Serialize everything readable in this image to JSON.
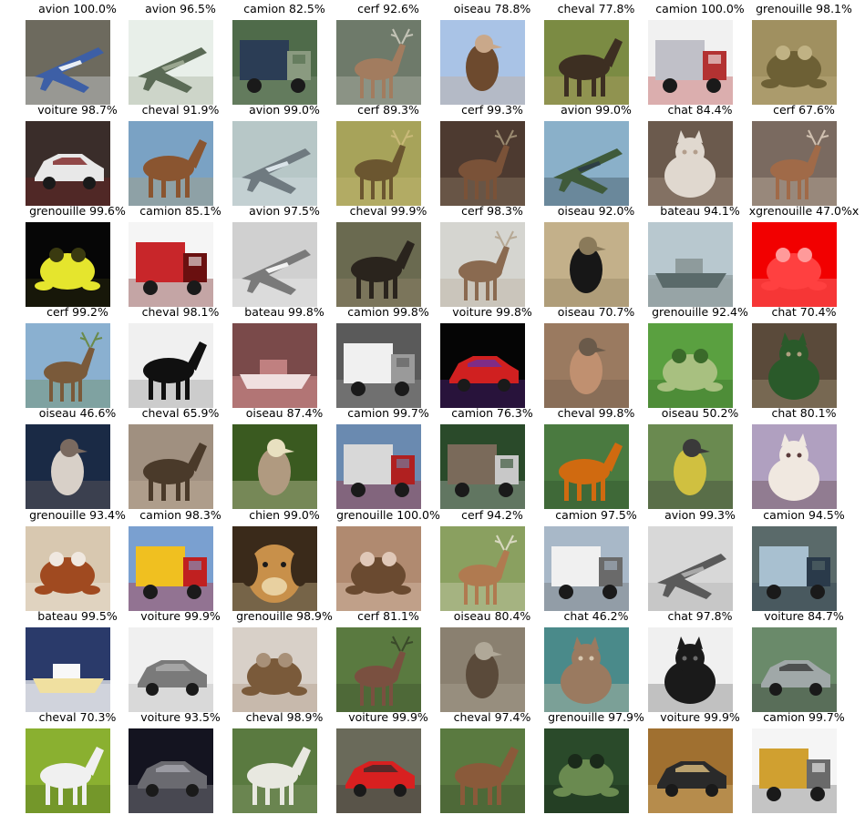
{
  "grid": {
    "rows": 8,
    "cols": 8,
    "cells": [
      {
        "label": "avion 100.0%",
        "subject": "airplane",
        "colors": [
          "#6d6a5e",
          "#3d5fa6",
          "#e8eef5"
        ]
      },
      {
        "label": "avion 96.5%",
        "subject": "airplane",
        "colors": [
          "#e8efe9",
          "#5a6a55",
          "#9aa690"
        ]
      },
      {
        "label": "camion 82.5%",
        "subject": "truck",
        "colors": [
          "#4f6b4a",
          "#2b3d55",
          "#8a9a80"
        ]
      },
      {
        "label": "cerf 92.6%",
        "subject": "deer",
        "colors": [
          "#6e7a6a",
          "#a27c5f",
          "#c3c3b6"
        ]
      },
      {
        "label": "oiseau 78.8%",
        "subject": "bird",
        "colors": [
          "#a9c3e6",
          "#6d4a2e",
          "#c9a88a"
        ]
      },
      {
        "label": "cheval 77.8%",
        "subject": "horse",
        "colors": [
          "#7b8b43",
          "#3d2f22",
          "#b7a26b"
        ]
      },
      {
        "label": "camion 100.0%",
        "subject": "truck",
        "colors": [
          "#f1f1f1",
          "#c0c0c8",
          "#b33232"
        ]
      },
      {
        "label": "grenouille 98.1%",
        "subject": "frog",
        "colors": [
          "#a09060",
          "#6d6035",
          "#c0b284"
        ]
      },
      {
        "label": "voiture 98.7%",
        "subject": "car",
        "colors": [
          "#3a2d2a",
          "#e8e8e8",
          "#7a1f1f"
        ]
      },
      {
        "label": "cheval 91.9%",
        "subject": "horse",
        "colors": [
          "#7aa2c4",
          "#8a5530",
          "#b5a170"
        ]
      },
      {
        "label": "avion 99.0%",
        "subject": "airplane",
        "colors": [
          "#b7c7c7",
          "#6f7a80",
          "#d9e3e8"
        ]
      },
      {
        "label": "cerf 89.3%",
        "subject": "deer",
        "colors": [
          "#a7a35a",
          "#6b5630",
          "#c9b978"
        ]
      },
      {
        "label": "cerf 99.3%",
        "subject": "deer",
        "colors": [
          "#4d3a30",
          "#7a5238",
          "#9a8a70"
        ]
      },
      {
        "label": "avion 99.0%",
        "subject": "airplane",
        "colors": [
          "#8ab0c9",
          "#3f5a3a",
          "#2d3e45"
        ]
      },
      {
        "label": "chat 84.4%",
        "subject": "cat",
        "colors": [
          "#6b5a4d",
          "#e0d8cf",
          "#b39e8c"
        ]
      },
      {
        "label": "cerf 67.6%",
        "subject": "deer",
        "colors": [
          "#7a6a60",
          "#a06a48",
          "#d0c0b0"
        ]
      },
      {
        "label": "grenouille 99.6%",
        "subject": "frog",
        "colors": [
          "#060606",
          "#e5e52d",
          "#3a3a10"
        ]
      },
      {
        "label": "camion 85.1%",
        "subject": "truck",
        "colors": [
          "#f5f5f5",
          "#c8262a",
          "#6a1010"
        ]
      },
      {
        "label": "avion 97.5%",
        "subject": "airplane",
        "colors": [
          "#d0d0d0",
          "#7a7a7a",
          "#f2f2f2"
        ]
      },
      {
        "label": "cheval 99.9%",
        "subject": "horse",
        "colors": [
          "#6a6a50",
          "#2a241d",
          "#9a8a70"
        ]
      },
      {
        "label": "cerf 98.3%",
        "subject": "deer",
        "colors": [
          "#d5d5d0",
          "#8a6a50",
          "#b6a894"
        ]
      },
      {
        "label": "oiseau 92.0%",
        "subject": "bird",
        "colors": [
          "#c3b08a",
          "#171717",
          "#8a7a5a"
        ]
      },
      {
        "label": "bateau 94.1%",
        "subject": "ship",
        "colors": [
          "#b8c8cf",
          "#5a6a6a",
          "#8e9b9c"
        ]
      },
      {
        "label": "xgrenouille 47.0%x",
        "subject": "frog",
        "colors": [
          "#f20000",
          "#ff4040",
          "#ff9a9a"
        ]
      },
      {
        "label": "cerf 99.2%",
        "subject": "deer",
        "colors": [
          "#8ab0d0",
          "#7a5a3a",
          "#6a8a4a"
        ]
      },
      {
        "label": "cheval 98.1%",
        "subject": "horse",
        "colors": [
          "#f0f0f0",
          "#101010",
          "#8a8a8a"
        ]
      },
      {
        "label": "bateau 99.8%",
        "subject": "ship",
        "colors": [
          "#7a4a4a",
          "#f0e0e0",
          "#c08080"
        ]
      },
      {
        "label": "camion 99.8%",
        "subject": "truck",
        "colors": [
          "#5a5a5a",
          "#f0f0f0",
          "#9a9a9a"
        ]
      },
      {
        "label": "voiture 99.8%",
        "subject": "car",
        "colors": [
          "#050505",
          "#d02020",
          "#6a2fa0"
        ]
      },
      {
        "label": "oiseau 70.7%",
        "subject": "bird",
        "colors": [
          "#9a7a60",
          "#c09070",
          "#6a5a4a"
        ]
      },
      {
        "label": "grenouille 92.4%",
        "subject": "frog",
        "colors": [
          "#5aa040",
          "#a8c080",
          "#3a6a2a"
        ]
      },
      {
        "label": "chat 70.4%",
        "subject": "cat",
        "colors": [
          "#5a4a3a",
          "#2a5a2a",
          "#b0a080"
        ]
      },
      {
        "label": "oiseau 46.6%",
        "subject": "bird",
        "colors": [
          "#1a2a45",
          "#d8d0c8",
          "#7a6a60"
        ]
      },
      {
        "label": "cheval 65.9%",
        "subject": "horse",
        "colors": [
          "#a09080",
          "#4a3a2a",
          "#c8b8a0"
        ]
      },
      {
        "label": "oiseau 87.4%",
        "subject": "bird",
        "colors": [
          "#3a5a20",
          "#b09a80",
          "#e8e0c0"
        ]
      },
      {
        "label": "camion 99.7%",
        "subject": "truck",
        "colors": [
          "#6a8ab0",
          "#d8d8d8",
          "#b02020"
        ]
      },
      {
        "label": "camion 76.3%",
        "subject": "truck",
        "colors": [
          "#2a4a2a",
          "#7a6a5a",
          "#c8c8c8"
        ]
      },
      {
        "label": "cheval 99.8%",
        "subject": "horse",
        "colors": [
          "#4a7a40",
          "#d06a10",
          "#2a4a2a"
        ]
      },
      {
        "label": "oiseau 50.2%",
        "subject": "bird",
        "colors": [
          "#6a8a50",
          "#d0c040",
          "#3a3a3a"
        ]
      },
      {
        "label": "chat 80.1%",
        "subject": "cat",
        "colors": [
          "#b0a0c0",
          "#f0e8e0",
          "#5a3a3a"
        ]
      },
      {
        "label": "grenouille 93.4%",
        "subject": "frog",
        "colors": [
          "#d8c8b0",
          "#a04a20",
          "#f0e8e0"
        ]
      },
      {
        "label": "camion 98.3%",
        "subject": "truck",
        "colors": [
          "#7aa0d0",
          "#f0c020",
          "#c02020"
        ]
      },
      {
        "label": "chien 99.0%",
        "subject": "dog",
        "colors": [
          "#3a2a1a",
          "#c8904a",
          "#e8d0a0"
        ]
      },
      {
        "label": "grenouille 100.0%",
        "subject": "frog",
        "colors": [
          "#b08a70",
          "#6a4a30",
          "#e0c8b8"
        ]
      },
      {
        "label": "cerf 94.2%",
        "subject": "deer",
        "colors": [
          "#8aa060",
          "#b07a50",
          "#d8d8c0"
        ]
      },
      {
        "label": "camion 97.5%",
        "subject": "truck",
        "colors": [
          "#a8b8c8",
          "#f0f0f0",
          "#6a6a6a"
        ]
      },
      {
        "label": "avion 99.3%",
        "subject": "airplane",
        "colors": [
          "#d8d8d8",
          "#5a5a5a",
          "#a8a8a8"
        ]
      },
      {
        "label": "camion 94.5%",
        "subject": "truck",
        "colors": [
          "#5a6a6a",
          "#a8c0d0",
          "#2a3a4a"
        ]
      },
      {
        "label": "bateau 99.5%",
        "subject": "ship",
        "colors": [
          "#2a3a6a",
          "#f0e0a0",
          "#f8f8f8"
        ]
      },
      {
        "label": "voiture 99.9%",
        "subject": "car",
        "colors": [
          "#f0f0f0",
          "#7a7a7a",
          "#b0b0b0"
        ]
      },
      {
        "label": "grenouille 98.9%",
        "subject": "frog",
        "colors": [
          "#d8d0c8",
          "#7a5a3a",
          "#a89078"
        ]
      },
      {
        "label": "cerf 81.1%",
        "subject": "deer",
        "colors": [
          "#5a7a40",
          "#7a5040",
          "#3a4a2a"
        ]
      },
      {
        "label": "oiseau 80.4%",
        "subject": "bird",
        "colors": [
          "#8a8070",
          "#5a4a3a",
          "#b0a898"
        ]
      },
      {
        "label": "chat 46.2%",
        "subject": "cat",
        "colors": [
          "#4a8a8a",
          "#9a7a60",
          "#d8c8b0"
        ]
      },
      {
        "label": "chat 97.8%",
        "subject": "cat",
        "colors": [
          "#f0f0f0",
          "#1a1a1a",
          "#6a6a6a"
        ]
      },
      {
        "label": "voiture 84.7%",
        "subject": "car",
        "colors": [
          "#6a8a6a",
          "#a0a8a8",
          "#3a3a3a"
        ]
      },
      {
        "label": "cheval 70.3%",
        "subject": "horse",
        "colors": [
          "#8ab030",
          "#f0f0f0",
          "#4a6a20"
        ]
      },
      {
        "label": "voiture 93.5%",
        "subject": "car",
        "colors": [
          "#141420",
          "#6a6a70",
          "#a8a8b0"
        ]
      },
      {
        "label": "cheval 98.9%",
        "subject": "horse",
        "colors": [
          "#5a7a40",
          "#e8e8e0",
          "#8a9a70"
        ]
      },
      {
        "label": "voiture 99.9%",
        "subject": "car",
        "colors": [
          "#6a6a5a",
          "#d82020",
          "#3a2a2a"
        ]
      },
      {
        "label": "cheval 97.4%",
        "subject": "horse",
        "colors": [
          "#5a7a40",
          "#8a5a3a",
          "#3a4a2a"
        ]
      },
      {
        "label": "grenouille 97.9%",
        "subject": "frog",
        "colors": [
          "#2a4a2a",
          "#6a8a50",
          "#1a2a1a"
        ]
      },
      {
        "label": "voiture 99.9%",
        "subject": "car",
        "colors": [
          "#a07030",
          "#2a2a2a",
          "#e0c080"
        ]
      },
      {
        "label": "camion 99.7%",
        "subject": "truck",
        "colors": [
          "#f5f5f5",
          "#d0a030",
          "#6a6a6a"
        ]
      }
    ]
  }
}
